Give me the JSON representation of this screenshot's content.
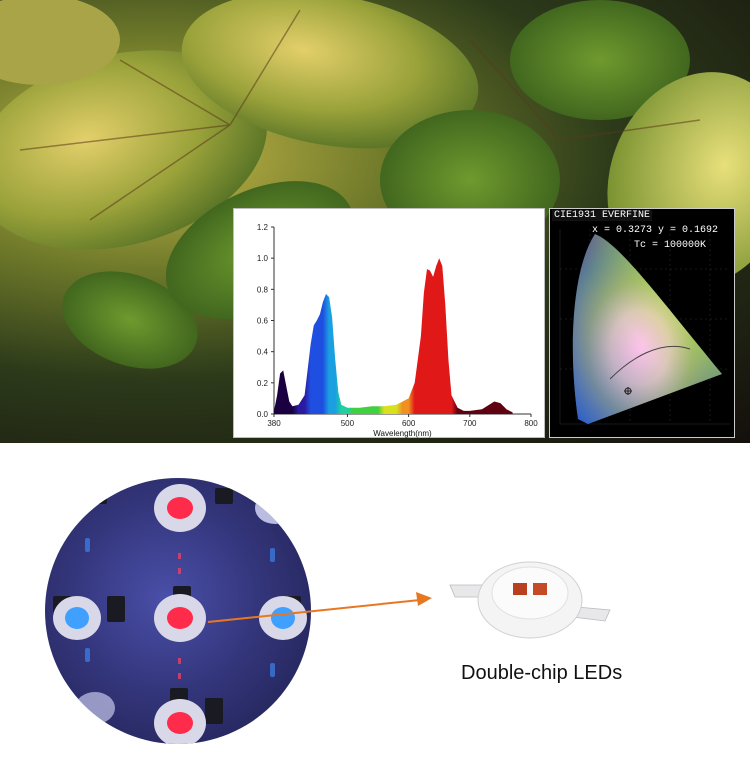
{
  "chart_data": [
    {
      "type": "line",
      "title": "",
      "xlabel": "Wavelength(nm)",
      "ylabel": "",
      "xlim": [
        380,
        800
      ],
      "ylim": [
        0,
        1.2
      ],
      "x_ticks": [
        "380",
        "500",
        "600",
        "700",
        "800"
      ],
      "y_ticks": [
        "0.0",
        "0.2",
        "0.4",
        "0.6",
        "0.8",
        "1.0",
        "1.2"
      ],
      "grid": false,
      "series": [
        {
          "x": [
            380,
            385,
            390,
            395,
            400,
            405,
            410,
            420,
            430,
            440,
            445,
            450,
            455,
            460,
            465,
            470,
            475,
            480,
            485,
            490,
            500,
            520,
            540,
            560,
            580,
            600,
            610,
            620,
            625,
            630,
            635,
            640,
            645,
            650,
            655,
            660,
            665,
            670,
            680,
            690,
            700,
            720,
            740,
            750,
            760,
            770
          ],
          "y": [
            0.02,
            0.12,
            0.26,
            0.28,
            0.18,
            0.08,
            0.05,
            0.06,
            0.12,
            0.45,
            0.57,
            0.6,
            0.64,
            0.72,
            0.77,
            0.75,
            0.62,
            0.35,
            0.14,
            0.06,
            0.04,
            0.04,
            0.05,
            0.05,
            0.06,
            0.1,
            0.2,
            0.5,
            0.78,
            0.93,
            0.92,
            0.88,
            0.95,
            1.0,
            0.95,
            0.7,
            0.35,
            0.12,
            0.04,
            0.02,
            0.02,
            0.03,
            0.08,
            0.07,
            0.03,
            0.01
          ]
        }
      ]
    }
  ],
  "cie": {
    "title": "CIE1931 EVERFINE",
    "xy_text": "x = 0.3273 y = 0.1692",
    "tc_text": "Tc = 100000K"
  },
  "caption": "Double-chip LEDs",
  "colors": {
    "arrow": "#e87722",
    "led_red": "#ff2b4a",
    "led_blue": "#3fa0ff"
  }
}
